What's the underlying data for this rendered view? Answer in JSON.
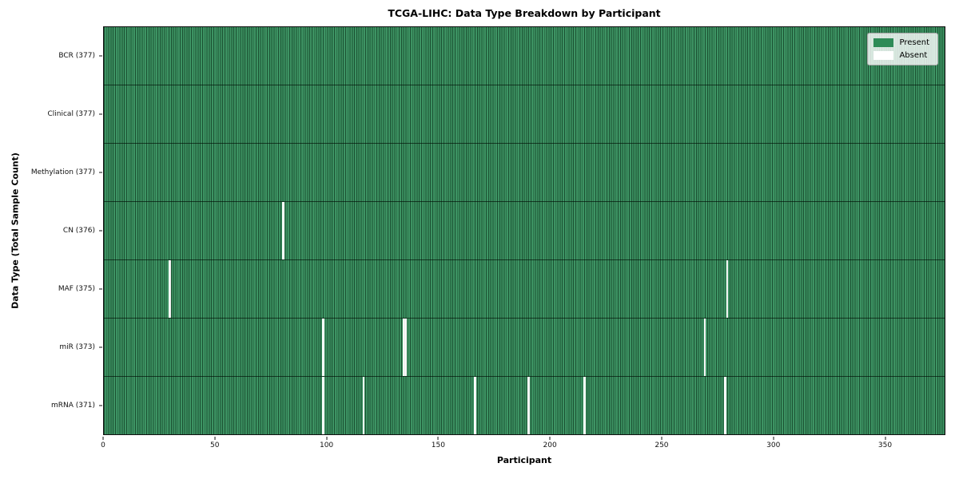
{
  "figure": {
    "background": "#ffffff"
  },
  "chart_data": {
    "type": "heatmap",
    "title": "TCGA-LIHC: Data Type Breakdown by Participant",
    "xlabel": "Participant",
    "ylabel": "Data Type (Total Sample Count)",
    "x_range": [
      0,
      377
    ],
    "x_ticks": [
      0,
      50,
      100,
      150,
      200,
      250,
      300,
      350
    ],
    "n_participants": 377,
    "grid": false,
    "colors": {
      "present": "#2e8b57",
      "absent": "#ffffff",
      "cell_edge": "#1e4d33"
    },
    "legend": {
      "position": "upper right",
      "entries": [
        {
          "label": "Present",
          "color": "#2e8b57"
        },
        {
          "label": "Absent",
          "color": "#ffffff"
        }
      ]
    },
    "rows": [
      {
        "name": "BCR",
        "label": "BCR (377)",
        "present_count": 377,
        "absent_participants": []
      },
      {
        "name": "Clinical",
        "label": "Clinical (377)",
        "present_count": 377,
        "absent_participants": []
      },
      {
        "name": "Methylation",
        "label": "Methylation (377)",
        "present_count": 377,
        "absent_participants": []
      },
      {
        "name": "CN",
        "label": "CN (376)",
        "present_count": 376,
        "absent_participants": [
          80
        ]
      },
      {
        "name": "MAF",
        "label": "MAF (375)",
        "present_count": 375,
        "absent_participants": [
          29,
          279
        ]
      },
      {
        "name": "miR",
        "label": "miR (373)",
        "present_count": 373,
        "absent_participants": [
          98,
          134,
          135,
          269
        ]
      },
      {
        "name": "mRNA",
        "label": "mRNA (371)",
        "present_count": 371,
        "absent_participants": [
          98,
          116,
          166,
          190,
          215,
          278
        ]
      }
    ]
  }
}
